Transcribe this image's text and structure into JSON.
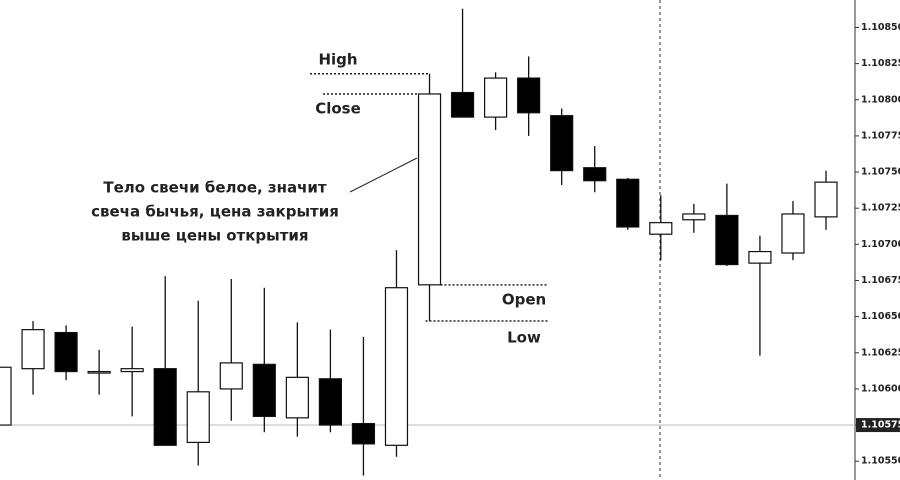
{
  "chart_data": {
    "type": "candlestick",
    "open": [
      1.10575,
      1.10614,
      1.10639,
      1.10612,
      1.10612,
      1.10614,
      1.10563,
      1.106,
      1.10617,
      1.1058,
      1.10607,
      1.10576,
      1.10561,
      1.10672,
      1.10805,
      1.10788,
      1.10815,
      1.10789,
      1.10753,
      1.10745,
      1.10707,
      1.10717,
      1.1072,
      1.10687,
      1.10694,
      1.10719
    ],
    "high": [
      1.10615,
      1.10647,
      1.10644,
      1.10627,
      1.10643,
      1.10678,
      1.10661,
      1.10676,
      1.1067,
      1.10646,
      1.10641,
      1.10636,
      1.10696,
      1.10818,
      1.10863,
      1.10819,
      1.1083,
      1.10794,
      1.10768,
      1.10746,
      1.10734,
      1.10728,
      1.10742,
      1.10706,
      1.1073,
      1.10751
    ],
    "low": [
      1.10575,
      1.10596,
      1.10606,
      1.10596,
      1.10581,
      1.10561,
      1.10547,
      1.10578,
      1.1057,
      1.10567,
      1.1057,
      1.1054,
      1.10553,
      1.10647,
      1.10788,
      1.10779,
      1.10775,
      1.10741,
      1.10736,
      1.1071,
      1.10689,
      1.10708,
      1.10685,
      1.10623,
      1.10689,
      1.1071
    ],
    "close": [
      1.10615,
      1.10641,
      1.10612,
      1.10612,
      1.10614,
      1.10561,
      1.10598,
      1.10618,
      1.10581,
      1.10608,
      1.10575,
      1.10562,
      1.1067,
      1.10804,
      1.10788,
      1.10815,
      1.10791,
      1.10751,
      1.10744,
      1.10712,
      1.10715,
      1.10721,
      1.10686,
      1.10695,
      1.10721,
      1.10743
    ],
    "ylim": [
      1.10537,
      1.10869
    ],
    "yticks": [
      {
        "value": 1.1055,
        "label": "1.10550"
      },
      {
        "value": 1.10575,
        "label": "1.10575"
      },
      {
        "value": 1.106,
        "label": "1.10600"
      },
      {
        "value": 1.10625,
        "label": "1.10625"
      },
      {
        "value": 1.1065,
        "label": "1.10650"
      },
      {
        "value": 1.10675,
        "label": "1.10675"
      },
      {
        "value": 1.107,
        "label": "1.10700"
      },
      {
        "value": 1.10725,
        "label": "1.10725"
      },
      {
        "value": 1.1075,
        "label": "1.10750"
      },
      {
        "value": 1.10775,
        "label": "1.10775"
      },
      {
        "value": 1.108,
        "label": "1.10800"
      },
      {
        "value": 1.10825,
        "label": "1.10825"
      },
      {
        "value": 1.1085,
        "label": "1.10850"
      }
    ],
    "current_price": {
      "value": 1.10575,
      "label": "1.10575"
    },
    "labels": {
      "high": "High",
      "close": "Close",
      "open": "Open",
      "low": "Low"
    },
    "annotation": [
      "Тело свечи белое, значит",
      "свеча бычья, цена закрытия",
      "выше цены открытия"
    ]
  }
}
